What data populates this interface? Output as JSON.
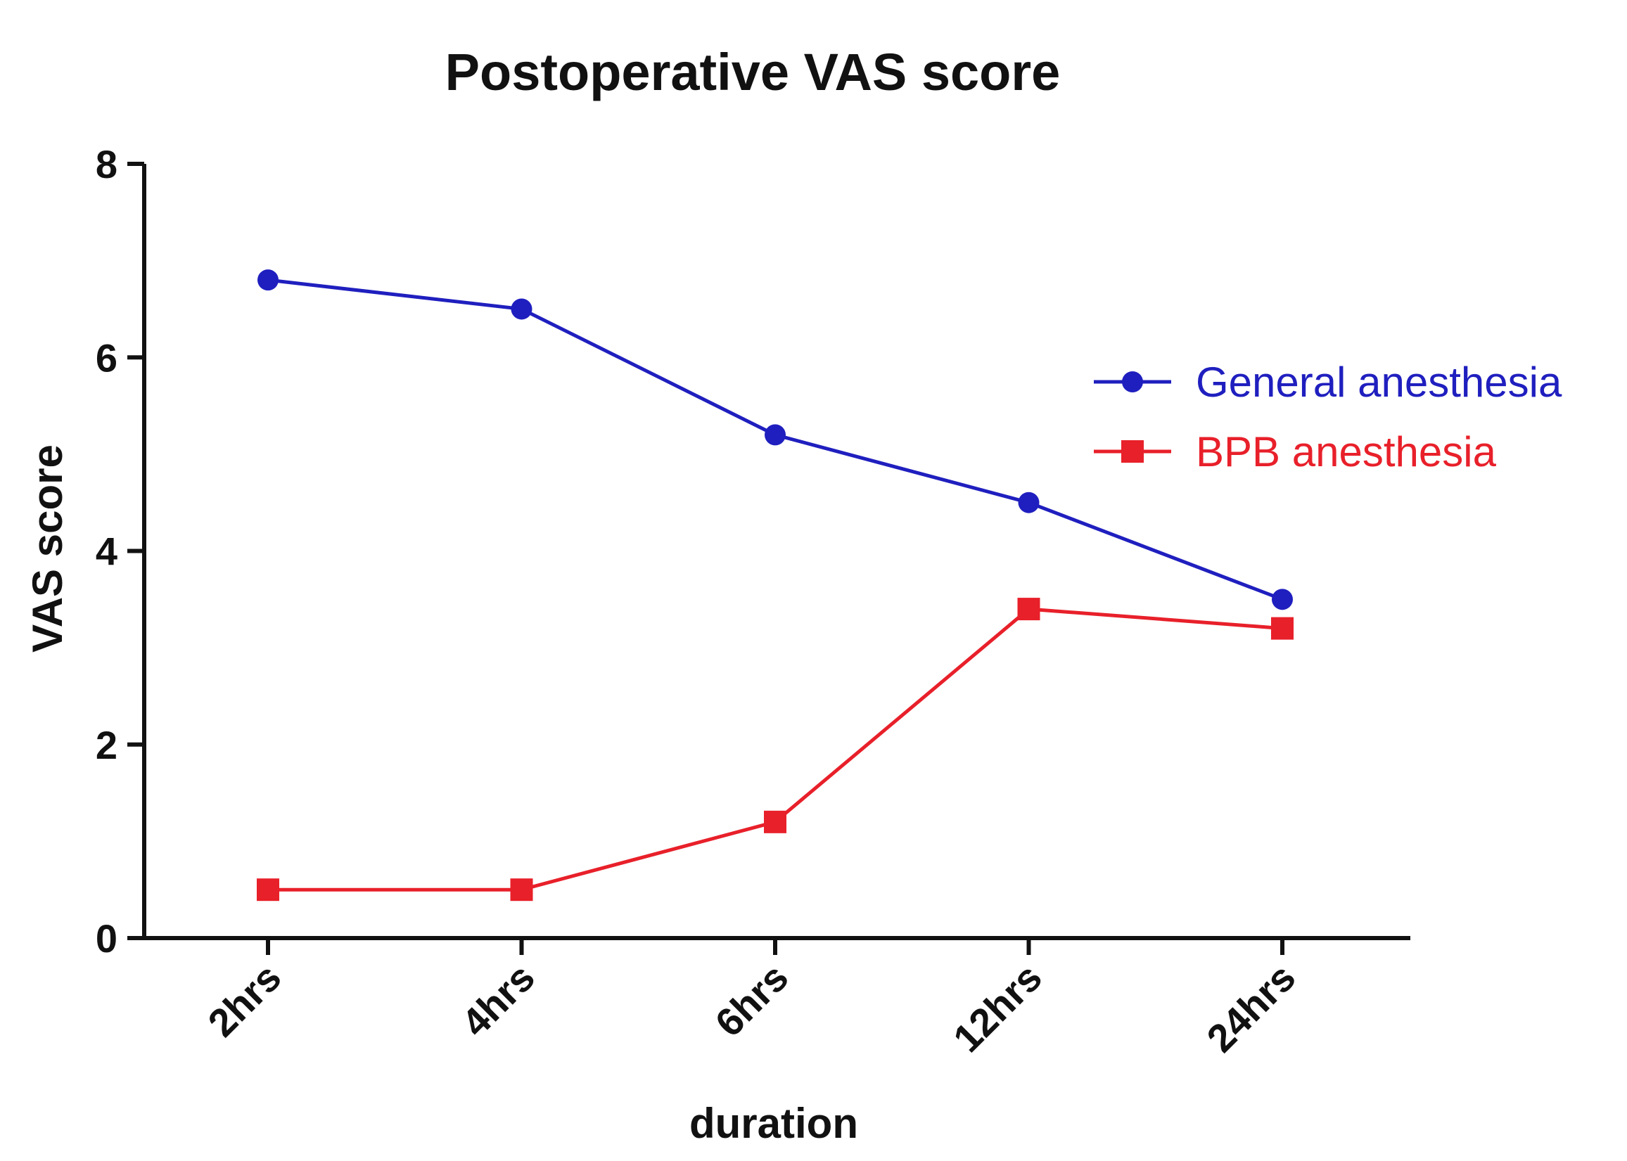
{
  "chart_data": {
    "type": "line",
    "title": "Postoperative VAS score",
    "xlabel": "duration",
    "ylabel": "VAS score",
    "categories": [
      "2hrs",
      "4hrs",
      "6hrs",
      "12hrs",
      "24hrs"
    ],
    "ylim": [
      0,
      8
    ],
    "yticks": [
      "0",
      "2",
      "4",
      "6",
      "8"
    ],
    "grid": false,
    "legend_position": "right",
    "series": [
      {
        "name": "General anesthesia",
        "values": [
          6.8,
          6.5,
          5.2,
          4.5,
          3.5
        ],
        "color": "#1f1fbf",
        "marker": "circle"
      },
      {
        "name": "BPB anesthesia",
        "values": [
          0.5,
          0.5,
          1.2,
          3.4,
          3.2
        ],
        "color": "#e8202a",
        "marker": "square"
      }
    ]
  }
}
